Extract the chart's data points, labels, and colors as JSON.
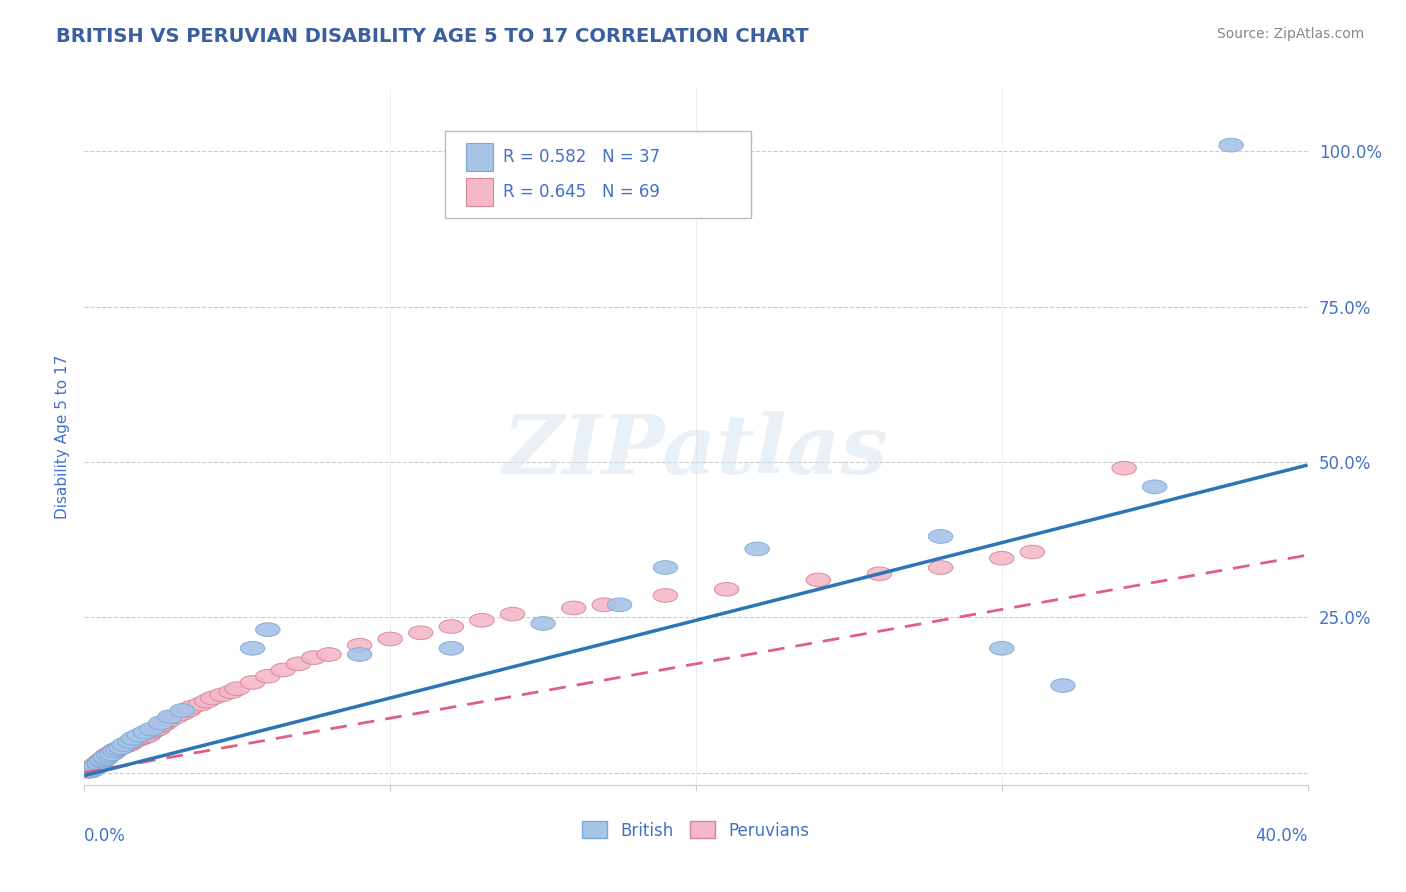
{
  "title": "BRITISH VS PERUVIAN DISABILITY AGE 5 TO 17 CORRELATION CHART",
  "source": "Source: ZipAtlas.com",
  "ylabel": "Disability Age 5 to 17",
  "y_ticks": [
    0.0,
    0.25,
    0.5,
    0.75,
    1.0
  ],
  "y_tick_labels": [
    "",
    "25.0%",
    "50.0%",
    "75.0%",
    "100.0%"
  ],
  "xlim": [
    0.0,
    0.4
  ],
  "ylim": [
    -0.02,
    1.1
  ],
  "title_color": "#3a5fa0",
  "axis_color": "#4472c4",
  "grid_color": "#cccccc",
  "bg_color": "#ffffff",
  "british_R": 0.582,
  "british_N": 37,
  "peruvian_R": 0.645,
  "peruvian_N": 69,
  "british_color": "#a8c4e8",
  "british_edge": "#7aaad4",
  "british_line_color": "#2e75b6",
  "peruvian_color": "#f4b8c8",
  "peruvian_edge": "#d4849a",
  "peruvian_line_color": "#e06080",
  "legend_label_british": "British",
  "legend_label_peruvian": "Peruvians",
  "british_x": [
    0.002,
    0.003,
    0.003,
    0.004,
    0.005,
    0.005,
    0.006,
    0.006,
    0.007,
    0.007,
    0.008,
    0.009,
    0.01,
    0.011,
    0.012,
    0.013,
    0.015,
    0.016,
    0.018,
    0.02,
    0.022,
    0.025,
    0.028,
    0.032,
    0.055,
    0.06,
    0.09,
    0.12,
    0.15,
    0.175,
    0.19,
    0.22,
    0.28,
    0.3,
    0.32,
    0.35,
    0.375
  ],
  "british_y": [
    0.002,
    0.005,
    0.008,
    0.01,
    0.012,
    0.015,
    0.018,
    0.02,
    0.022,
    0.025,
    0.028,
    0.03,
    0.035,
    0.038,
    0.04,
    0.045,
    0.05,
    0.055,
    0.06,
    0.065,
    0.07,
    0.08,
    0.09,
    0.1,
    0.2,
    0.23,
    0.19,
    0.2,
    0.24,
    0.27,
    0.33,
    0.36,
    0.38,
    0.2,
    0.14,
    0.46,
    1.01
  ],
  "peruvian_x": [
    0.001,
    0.002,
    0.002,
    0.003,
    0.003,
    0.004,
    0.004,
    0.005,
    0.005,
    0.006,
    0.006,
    0.007,
    0.007,
    0.008,
    0.008,
    0.009,
    0.01,
    0.01,
    0.011,
    0.012,
    0.013,
    0.014,
    0.015,
    0.015,
    0.016,
    0.017,
    0.018,
    0.019,
    0.02,
    0.021,
    0.022,
    0.023,
    0.024,
    0.025,
    0.026,
    0.027,
    0.028,
    0.03,
    0.032,
    0.034,
    0.035,
    0.038,
    0.04,
    0.042,
    0.045,
    0.048,
    0.05,
    0.055,
    0.06,
    0.065,
    0.07,
    0.075,
    0.08,
    0.09,
    0.1,
    0.11,
    0.12,
    0.13,
    0.14,
    0.16,
    0.17,
    0.19,
    0.21,
    0.24,
    0.26,
    0.28,
    0.3,
    0.31,
    0.34
  ],
  "peruvian_y": [
    0.002,
    0.004,
    0.006,
    0.008,
    0.01,
    0.012,
    0.014,
    0.016,
    0.018,
    0.02,
    0.022,
    0.024,
    0.026,
    0.028,
    0.03,
    0.032,
    0.034,
    0.036,
    0.038,
    0.04,
    0.042,
    0.044,
    0.046,
    0.048,
    0.05,
    0.052,
    0.054,
    0.056,
    0.058,
    0.06,
    0.065,
    0.068,
    0.07,
    0.075,
    0.078,
    0.082,
    0.085,
    0.09,
    0.095,
    0.1,
    0.105,
    0.11,
    0.115,
    0.12,
    0.125,
    0.13,
    0.135,
    0.145,
    0.155,
    0.165,
    0.175,
    0.185,
    0.19,
    0.205,
    0.215,
    0.225,
    0.235,
    0.245,
    0.255,
    0.265,
    0.27,
    0.285,
    0.295,
    0.31,
    0.32,
    0.33,
    0.345,
    0.355,
    0.49
  ],
  "british_line_x0": 0.0,
  "british_line_y0": -0.005,
  "british_line_x1": 0.4,
  "british_line_y1": 0.495,
  "peruvian_line_x0": 0.0,
  "peruvian_line_y0": 0.0,
  "peruvian_line_x1": 0.4,
  "peruvian_line_y1": 0.35
}
